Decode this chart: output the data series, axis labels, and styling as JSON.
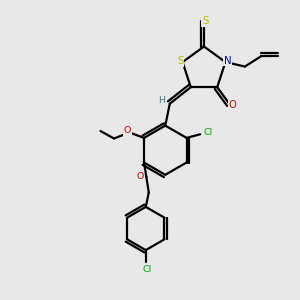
{
  "background_color": "#e8e8e8",
  "bond_color": "#000000",
  "atom_colors": {
    "S": "#b8b800",
    "N": "#0000cc",
    "O": "#cc0000",
    "Cl": "#00aa00",
    "H": "#4a7070",
    "C": "#000000"
  },
  "figsize": [
    3.0,
    3.0
  ],
  "dpi": 100
}
